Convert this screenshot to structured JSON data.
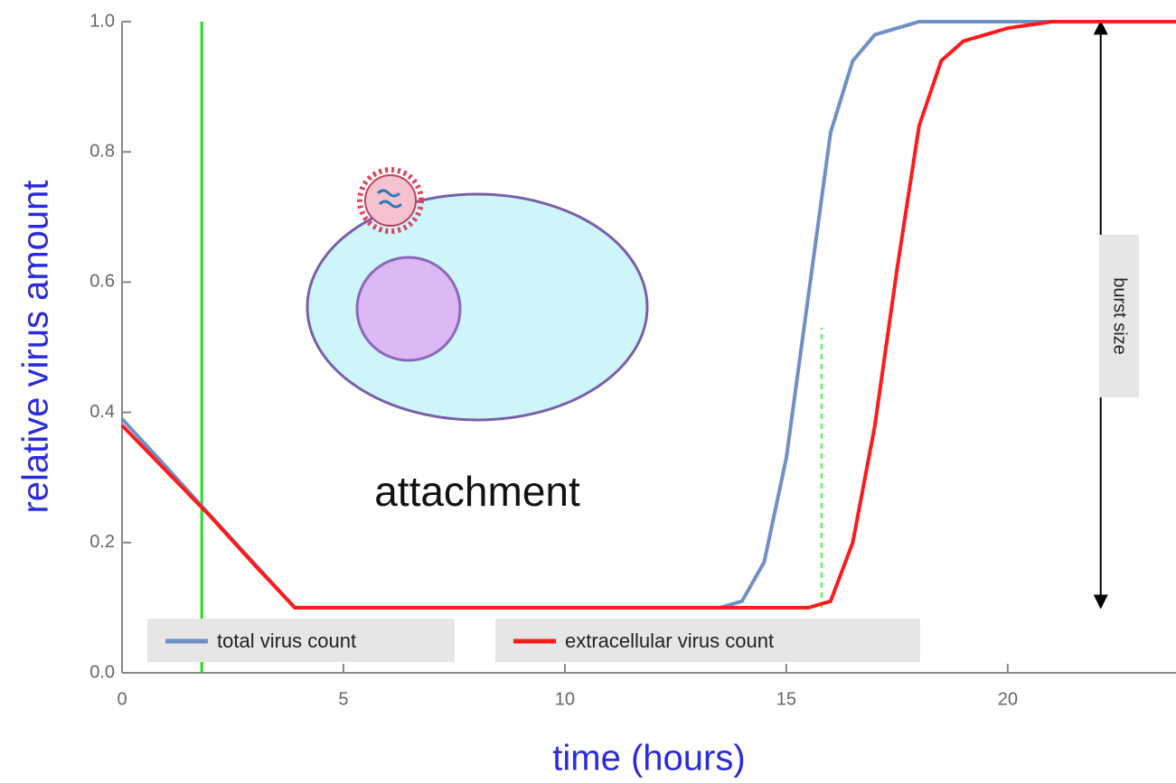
{
  "chart_data": {
    "type": "line",
    "x_label": "time (hours)",
    "y_label": "relative virus amount",
    "x": [
      0,
      1,
      2,
      3,
      3.9,
      6,
      8,
      10,
      12,
      13.5,
      14,
      14.5,
      15,
      15.5,
      16,
      16.5,
      17,
      17.5,
      18,
      18.5,
      19,
      20,
      21,
      22,
      23.8
    ],
    "series": [
      {
        "name": "total virus count",
        "color": "#6f8fc7",
        "values": [
          0.39,
          0.316,
          0.241,
          0.167,
          0.1,
          0.1,
          0.1,
          0.1,
          0.1,
          0.1,
          0.11,
          0.17,
          0.33,
          0.58,
          0.83,
          0.94,
          0.98,
          0.99,
          1.0,
          1.0,
          1.0,
          1.0,
          1.0,
          1.0,
          1.0
        ]
      },
      {
        "name": "extracellular virus count",
        "color": "#ff1a1a",
        "values": [
          0.38,
          0.31,
          0.24,
          0.165,
          0.1,
          0.1,
          0.1,
          0.1,
          0.1,
          0.1,
          0.1,
          0.1,
          0.1,
          0.1,
          0.11,
          0.2,
          0.38,
          0.62,
          0.84,
          0.94,
          0.97,
          0.99,
          1.0,
          1.0,
          1.0
        ]
      }
    ],
    "xlim": [
      0,
      23.8
    ],
    "ylim": [
      0,
      1
    ],
    "xticks": [
      0,
      5,
      10,
      15,
      20
    ],
    "yticks": [
      {
        "value": 0,
        "label": "0.0"
      },
      0.2,
      0.4,
      0.6,
      0.8,
      {
        "value": 1,
        "label": "1.0"
      }
    ],
    "reference_lines": [
      {
        "x": 1.8,
        "color": "#22dd22"
      },
      {
        "x": 15.8,
        "y": [
          0.1,
          0.53
        ],
        "color": "#77ee77",
        "dashed": true
      }
    ],
    "annotations": [
      {
        "text": "attachment"
      },
      {
        "text": "burst size",
        "x": 22.1,
        "y": [
          0.1,
          1.0
        ]
      }
    ]
  }
}
